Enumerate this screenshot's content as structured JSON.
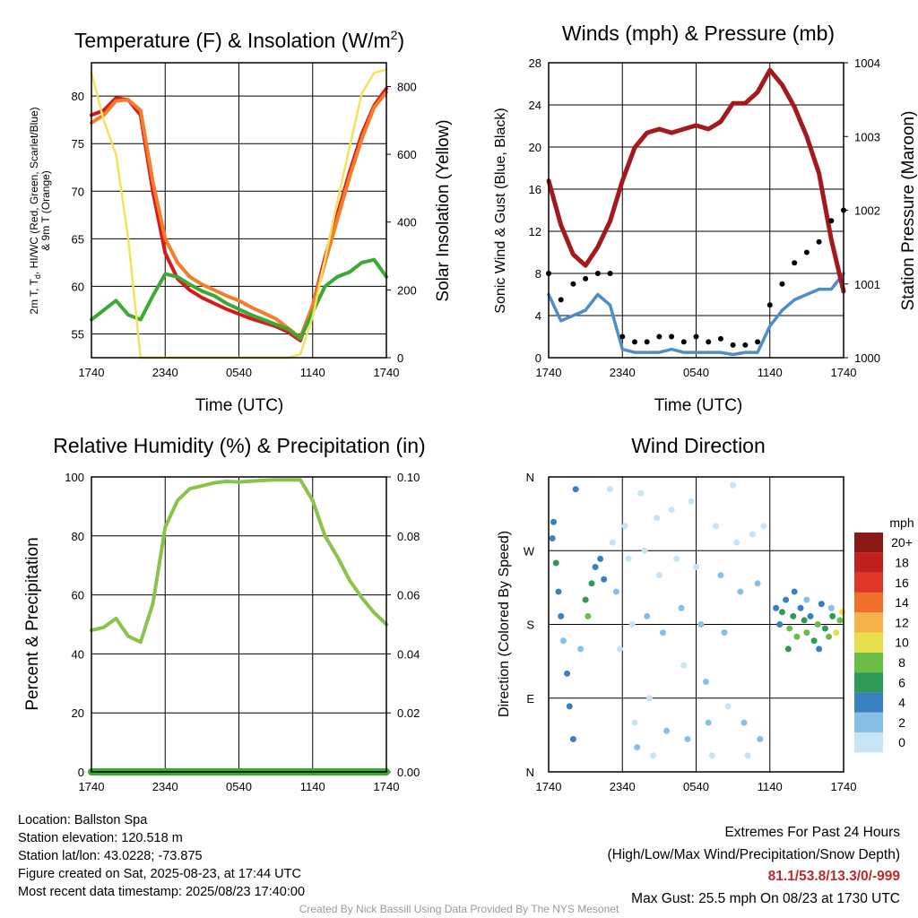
{
  "time_ticks": [
    "1740",
    "2340",
    "0540",
    "1140",
    "1740"
  ],
  "panels": {
    "temperature": {
      "title_main": "Temperature (F) & Insolation (W/m",
      "title_sup": "2",
      "title_end": ")",
      "xlabel": "Time (UTC)",
      "ylabel_line1": "2m T, T",
      "ylabel_sub": "d",
      "ylabel_line1b": ", HI/WC (Red, Green, Scarlet/Blue)",
      "ylabel_line2": "& 9m T (Orange)",
      "y2label": "Solar Insolation (Yellow)"
    },
    "winds": {
      "title": "Winds (mph) & Pressure (mb)",
      "xlabel": "Time (UTC)",
      "ylabel": "Sonic Wind & Gust (Blue, Black)",
      "y2label": "Station Pressure (Maroon)"
    },
    "humidity": {
      "title": "Relative Humidity (%) & Precipitation (in)",
      "ylabel": "Percent & Precipitation"
    },
    "direction": {
      "title": "Wind Direction",
      "ylabel": "Direction (Colored By Speed)",
      "legend_title": "mph"
    }
  },
  "chart_data": [
    {
      "type": "line",
      "title": "Temperature (F) & Insolation (W/m2)",
      "xlabel": "Time (UTC)",
      "x_hours": [
        0,
        1,
        2,
        3,
        4,
        5,
        6,
        7,
        8,
        9,
        10,
        11,
        12,
        13,
        14,
        15,
        16,
        17,
        18,
        19,
        20,
        21,
        22,
        23,
        24
      ],
      "ylim": [
        52.5,
        83.5
      ],
      "yticks": [
        55,
        60,
        65,
        70,
        75,
        80
      ],
      "y2lim": [
        0,
        870
      ],
      "y2ticks": [
        0,
        200,
        400,
        600,
        800
      ],
      "series": [
        {
          "axis": "left",
          "color": "#d7191c",
          "values": [
            78,
            78.5,
            79.8,
            79.6,
            78,
            70,
            63.5,
            60.8,
            59.6,
            58.8,
            58.2,
            57.6,
            57.1,
            56.6,
            56.2,
            55.8,
            55.2,
            54.3,
            58,
            63,
            67.5,
            72,
            76,
            79,
            80.8
          ]
        },
        {
          "axis": "left",
          "color": "#f47c2a",
          "values": [
            77.2,
            78,
            79.5,
            79.6,
            78.5,
            71,
            65,
            62.5,
            61,
            60.2,
            59.6,
            59,
            58.5,
            57.8,
            57.2,
            56.6,
            55.6,
            54.6,
            58,
            62.5,
            67,
            71.5,
            75.5,
            78.8,
            80.4
          ]
        },
        {
          "axis": "left",
          "color": "#3aaa35",
          "values": [
            56.5,
            57.5,
            58.5,
            57,
            56.5,
            59,
            61.3,
            61,
            60.2,
            59.5,
            59,
            58.2,
            57.6,
            57,
            56.5,
            56,
            55.5,
            54.5,
            57.3,
            60,
            61,
            61.5,
            62.5,
            62.8,
            61
          ]
        },
        {
          "axis": "right",
          "color": "#f2e35b",
          "values": [
            840,
            700,
            600,
            350,
            0,
            0,
            0,
            0,
            0,
            0,
            0,
            0,
            0,
            0,
            0,
            0,
            0,
            10,
            120,
            290,
            460,
            620,
            780,
            840,
            850
          ]
        }
      ]
    },
    {
      "type": "line",
      "title": "Winds (mph) & Pressure (mb)",
      "xlabel": "Time (UTC)",
      "x_hours": [
        0,
        1,
        2,
        3,
        4,
        5,
        6,
        7,
        8,
        9,
        10,
        11,
        12,
        13,
        14,
        15,
        16,
        17,
        18,
        19,
        20,
        21,
        22,
        23,
        24
      ],
      "ylim": [
        0,
        28
      ],
      "yticks": [
        0,
        4,
        8,
        12,
        16,
        20,
        24,
        28
      ],
      "y2lim": [
        1000,
        1004
      ],
      "y2ticks": [
        1000,
        1001,
        1002,
        1003,
        1004
      ],
      "series": [
        {
          "name": "Sonic Wind",
          "axis": "left",
          "color": "#4d8ec9",
          "values": [
            6,
            3.5,
            4,
            4.5,
            6,
            5,
            0.8,
            0.5,
            0.5,
            0.5,
            0.8,
            0.5,
            0.5,
            0.5,
            0.5,
            0.3,
            0.5,
            0.5,
            3,
            4.5,
            5.5,
            6,
            6.5,
            6.5,
            8
          ]
        },
        {
          "name": "Station Pressure",
          "axis": "right",
          "color": "#a3191c",
          "values": [
            1002.4,
            1001.8,
            1001.4,
            1001.25,
            1001.5,
            1001.85,
            1002.4,
            1002.85,
            1003.05,
            1003.1,
            1003.05,
            1003.1,
            1003.15,
            1003.1,
            1003.2,
            1003.45,
            1003.45,
            1003.6,
            1003.9,
            1003.7,
            1003.4,
            1003.0,
            1002.5,
            1001.6,
            1000.9
          ]
        },
        {
          "name": "Gust",
          "axis": "left",
          "color": "#000000",
          "values": [
            8,
            5.5,
            7,
            7.5,
            8,
            8,
            2,
            1.5,
            1.5,
            2,
            2,
            1.5,
            2,
            1.5,
            1.8,
            1.2,
            1.2,
            1.5,
            5,
            7,
            9,
            10,
            11,
            13,
            14
          ]
        }
      ]
    },
    {
      "type": "line",
      "title": "Relative Humidity (%) & Precipitation (in)",
      "x_hours": [
        0,
        1,
        2,
        3,
        4,
        5,
        6,
        7,
        8,
        9,
        10,
        11,
        12,
        13,
        14,
        15,
        16,
        17,
        18,
        19,
        20,
        21,
        22,
        23,
        24
      ],
      "ylim": [
        0,
        100
      ],
      "yticks": [
        0,
        20,
        40,
        60,
        80,
        100
      ],
      "y2lim": [
        0,
        0.1
      ],
      "y2ticks": [
        "0.00",
        "0.02",
        "0.04",
        "0.06",
        "0.08",
        "0.10"
      ],
      "series": [
        {
          "name": "Relative Humidity",
          "axis": "left",
          "color": "#8bc34a",
          "values": [
            48,
            49,
            52,
            46,
            44,
            57,
            83,
            92,
            96,
            97,
            98,
            98.5,
            98.3,
            98.6,
            98.8,
            99,
            99,
            99,
            92,
            80,
            73,
            65,
            59,
            54,
            50
          ]
        },
        {
          "name": "Precipitation",
          "axis": "right",
          "color": "#3aaa35",
          "values": [
            0,
            0,
            0,
            0,
            0,
            0,
            0,
            0,
            0,
            0,
            0,
            0,
            0,
            0,
            0,
            0,
            0,
            0,
            0,
            0,
            0,
            0,
            0,
            0,
            0
          ]
        }
      ]
    },
    {
      "type": "scatter",
      "title": "Wind Direction",
      "x_hours": [
        0,
        1,
        2,
        3,
        4,
        5,
        6,
        7,
        8,
        9,
        10,
        11,
        12,
        13,
        14,
        15,
        16,
        17,
        18,
        19,
        20,
        21,
        22,
        23,
        24
      ],
      "yticks": [
        "N",
        "E",
        "S",
        "W",
        "N"
      ],
      "ylim": [
        0,
        360
      ],
      "points": [
        [
          0.3,
          285,
          4
        ],
        [
          0.4,
          305,
          4
        ],
        [
          0.6,
          255,
          6
        ],
        [
          0.8,
          220,
          4
        ],
        [
          1.0,
          190,
          4
        ],
        [
          1.2,
          160,
          2
        ],
        [
          1.5,
          120,
          4
        ],
        [
          1.7,
          80,
          4
        ],
        [
          2.0,
          40,
          4
        ],
        [
          2.2,
          345,
          4
        ],
        [
          2.6,
          150,
          2
        ],
        [
          3.0,
          210,
          6
        ],
        [
          3.2,
          190,
          8
        ],
        [
          3.5,
          230,
          6
        ],
        [
          3.8,
          250,
          4
        ],
        [
          4.2,
          260,
          4
        ],
        [
          4.5,
          235,
          4
        ],
        [
          5.0,
          345,
          0
        ],
        [
          5.2,
          280,
          0
        ],
        [
          5.5,
          220,
          2
        ],
        [
          5.8,
          150,
          0
        ],
        [
          6.2,
          300,
          0
        ],
        [
          6.5,
          260,
          0
        ],
        [
          6.8,
          180,
          0
        ],
        [
          7.0,
          60,
          0
        ],
        [
          7.2,
          30,
          2
        ],
        [
          7.5,
          340,
          0
        ],
        [
          7.8,
          270,
          0
        ],
        [
          8.0,
          190,
          2
        ],
        [
          8.2,
          90,
          0
        ],
        [
          8.5,
          20,
          0
        ],
        [
          8.8,
          310,
          0
        ],
        [
          9.0,
          240,
          0
        ],
        [
          9.3,
          170,
          2
        ],
        [
          9.6,
          50,
          2
        ],
        [
          10.0,
          320,
          0
        ],
        [
          10.4,
          260,
          0
        ],
        [
          10.8,
          200,
          2
        ],
        [
          11.0,
          130,
          0
        ],
        [
          11.3,
          40,
          2
        ],
        [
          11.6,
          330,
          0
        ],
        [
          12.0,
          250,
          0
        ],
        [
          12.4,
          180,
          2
        ],
        [
          12.8,
          110,
          2
        ],
        [
          13.0,
          60,
          2
        ],
        [
          13.3,
          20,
          0
        ],
        [
          13.6,
          300,
          0
        ],
        [
          14.0,
          240,
          2
        ],
        [
          14.3,
          170,
          2
        ],
        [
          14.6,
          80,
          0
        ],
        [
          15.0,
          350,
          0
        ],
        [
          15.3,
          280,
          0
        ],
        [
          15.6,
          220,
          2
        ],
        [
          15.9,
          60,
          2
        ],
        [
          16.2,
          20,
          0
        ],
        [
          16.6,
          290,
          0
        ],
        [
          17.0,
          230,
          2
        ],
        [
          17.2,
          40,
          2
        ],
        [
          17.5,
          300,
          0
        ],
        [
          18.5,
          200,
          4
        ],
        [
          18.8,
          180,
          4
        ],
        [
          19.0,
          195,
          6
        ],
        [
          19.3,
          210,
          4
        ],
        [
          19.6,
          175,
          8
        ],
        [
          19.9,
          190,
          6
        ],
        [
          20.2,
          165,
          8
        ],
        [
          20.5,
          200,
          4
        ],
        [
          20.8,
          185,
          6
        ],
        [
          21.0,
          170,
          8
        ],
        [
          21.3,
          190,
          4
        ],
        [
          21.6,
          160,
          6
        ],
        [
          21.9,
          180,
          8
        ],
        [
          22.2,
          205,
          4
        ],
        [
          22.5,
          175,
          6
        ],
        [
          22.8,
          165,
          8
        ],
        [
          23.1,
          190,
          6
        ],
        [
          23.4,
          170,
          10
        ],
        [
          23.7,
          185,
          8
        ],
        [
          23.9,
          195,
          10
        ],
        [
          22.0,
          150,
          4
        ],
        [
          21.0,
          210,
          2
        ],
        [
          20.0,
          220,
          4
        ],
        [
          19.5,
          150,
          6
        ],
        [
          23.0,
          200,
          2
        ]
      ]
    }
  ],
  "speed_legend": {
    "labels": [
      "0",
      "2",
      "4",
      "6",
      "8",
      "10",
      "12",
      "14",
      "16",
      "18",
      "20+"
    ],
    "colors": [
      "#c6e4f5",
      "#87c0e6",
      "#3a7fc0",
      "#2f9a57",
      "#6cbd45",
      "#e8e04a",
      "#f6b24a",
      "#f0702a",
      "#e0362a",
      "#c0201f",
      "#8c1717"
    ]
  },
  "info": {
    "location": "Location: Ballston Spa",
    "elevation": "Station elevation: 120.518 m",
    "latlon": "Station lat/lon: 43.0228; -73.875",
    "created": "Figure created on Sat, 2025-08-23, at 17:44 UTC",
    "recent": "Most recent data timestamp: 2025/08/23 17:40:00",
    "extremes_title": "Extremes For Past 24 Hours",
    "extremes_fields": "(High/Low/Max Wind/Precipitation/Snow Depth)",
    "extremes_values": "81.1/53.8/13.3/0/-999",
    "max_gust": "Max Gust: 25.5 mph On 08/23 at 1730 UTC",
    "credit": "Created By Nick Bassill Using Data Provided By The NYS Mesonet"
  }
}
